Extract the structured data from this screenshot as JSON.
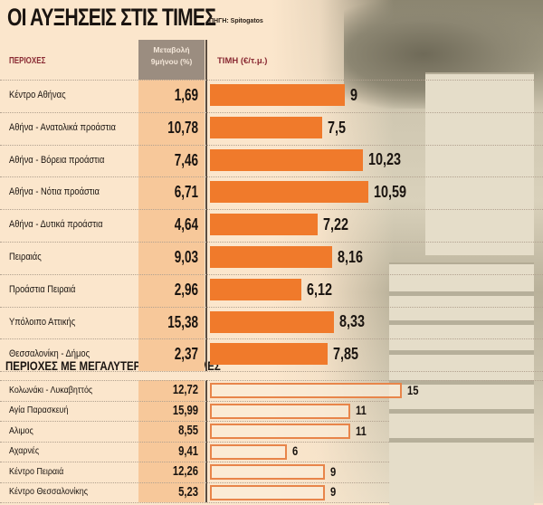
{
  "title": "ΟΙ ΑΥΞΗΣΕΙΣ ΣΤΙΣ ΤΙΜΕΣ",
  "source": "ΠΗΓΗ: Spitogatos",
  "headers": {
    "regions": "ΠΕΡΙΟΧΕΣ",
    "pct_line1": "Μεταβολή",
    "pct_line2": "9μήνου (%)",
    "price": "ΤΙΜΗ (€/τ.μ.)"
  },
  "section2_title": "ΠΕΡΙΟΧΕΣ ΜΕ ΜΕΓΑΛΥΤΕΡΕΣ ΜΕΤΑΒΟΛΕΣ",
  "colors": {
    "bar_fill": "#f07a2b",
    "bar_outline": "#e8854a",
    "header_red": "#8a2a33",
    "pct_column": "#f7c89a"
  },
  "chart_data": [
    {
      "type": "bar",
      "orientation": "horizontal",
      "title": "ΟΙ ΑΥΞΗΣΕΙΣ ΣΤΙΣ ΤΙΜΕΣ",
      "xlabel": "ΤΙΜΗ (€/τ.μ.)",
      "categories": [
        "Κέντρο Αθήνας",
        "Αθήνα - Ανατολικά προάστια",
        "Αθήνα - Βόρεια προάστια",
        "Αθήνα - Νότια προάστια",
        "Αθήνα - Δυτικά προάστια",
        "Πειραιάς",
        "Προάστια Πειραιά",
        "Υπόλοιπο Αττικής",
        "Θεσσαλονίκη - Δήμος"
      ],
      "change_pct_9m": [
        "1,69",
        "10,78",
        "7,46",
        "6,71",
        "4,64",
        "9,03",
        "2,96",
        "15,38",
        "2,37"
      ],
      "values": [
        9,
        7.5,
        10.23,
        10.59,
        7.22,
        8.16,
        6.12,
        8.33,
        7.85
      ],
      "value_labels": [
        "9",
        "7,5",
        "10,23",
        "10,59",
        "7,22",
        "8,16",
        "6,12",
        "8,33",
        "7,85"
      ],
      "xlim": [
        0,
        16
      ]
    },
    {
      "type": "bar",
      "orientation": "horizontal",
      "title": "ΠΕΡΙΟΧΕΣ ΜΕ ΜΕΓΑΛΥΤΕΡΕΣ ΜΕΤΑΒΟΛΕΣ",
      "xlabel": "ΤΙΜΗ (€/τ.μ.)",
      "categories": [
        "Κολωνάκι - Λυκαβηττός",
        "Αγία Παρασκευή",
        "Αλιμος",
        "Αχαρνές",
        "Κέντρο Πειραιά",
        "Κέντρο Θεσσαλονίκης"
      ],
      "change_pct_9m": [
        "12,72",
        "15,99",
        "8,55",
        "9,41",
        "12,26",
        "5,23"
      ],
      "values": [
        15,
        11,
        11,
        6,
        9,
        9
      ],
      "value_labels": [
        "15",
        "11",
        "11",
        "6",
        "9",
        "9"
      ],
      "xlim": [
        0,
        16
      ]
    }
  ]
}
